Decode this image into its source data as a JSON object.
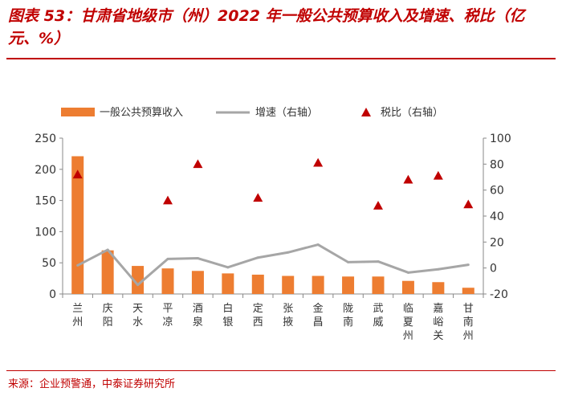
{
  "header": {
    "title": "图表 53：甘肃省地级市（州）2022 年一般公共预算收入及增速、税比（亿元、%）"
  },
  "footer": {
    "source": "来源：企业预警通，中泰证券研究所"
  },
  "colors": {
    "bar": "#ed7d31",
    "line": "#a6a6a6",
    "marker": "#c00000",
    "title": "#c00000"
  },
  "chart_data": {
    "type": "bar",
    "categories": [
      "兰州",
      "庆阳",
      "天水",
      "平凉",
      "酒泉",
      "白银",
      "定西",
      "张掖",
      "金昌",
      "陇南",
      "武威",
      "临夏州",
      "嘉峪关",
      "甘南州"
    ],
    "series": [
      {
        "name": "一般公共预算收入",
        "type": "bar",
        "axis": "left",
        "values": [
          221,
          70,
          45,
          41,
          37,
          33,
          31,
          29,
          29,
          28,
          28,
          21,
          19,
          10
        ]
      },
      {
        "name": "增速（右轴）",
        "type": "line",
        "axis": "right",
        "values": [
          2,
          14,
          -13,
          7,
          7.5,
          0.5,
          8,
          12,
          18,
          4.5,
          5,
          -3.5,
          -1,
          2.5
        ]
      },
      {
        "name": "税比（右轴）",
        "type": "scatter",
        "axis": "right",
        "marker": "triangle",
        "values": [
          72,
          null,
          null,
          52,
          80,
          null,
          54,
          null,
          81,
          null,
          48,
          68,
          71,
          49
        ]
      }
    ],
    "yleft": {
      "ticks": [
        "0",
        "50",
        "100",
        "150",
        "200",
        "250"
      ],
      "lim": [
        0,
        250
      ]
    },
    "yright": {
      "ticks": [
        "-20",
        "0",
        "20",
        "40",
        "60",
        "80",
        "100"
      ],
      "lim": [
        -20,
        100
      ]
    },
    "legend_position": "top"
  }
}
